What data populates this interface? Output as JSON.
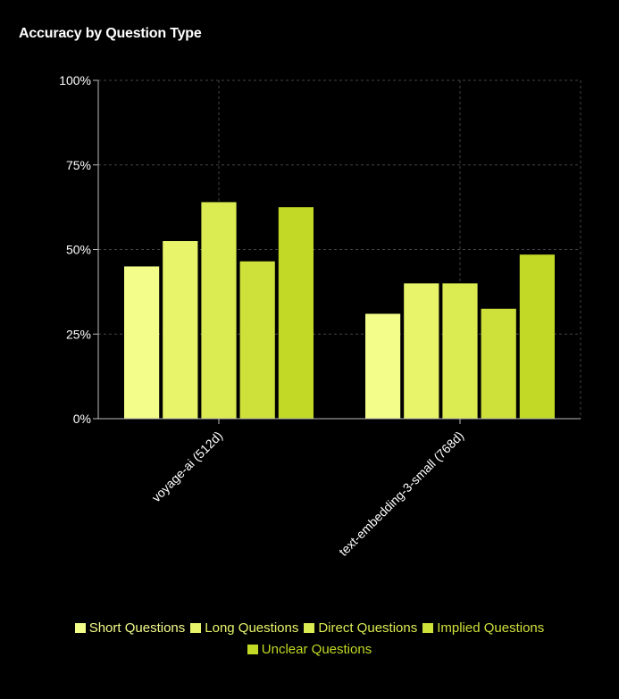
{
  "title": "Accuracy by Question Type",
  "chart_data": {
    "type": "bar",
    "title": "Accuracy by Question Type",
    "xlabel": "",
    "ylabel": "",
    "categories": [
      "voyage-ai (512d)",
      "text-embedding-3-small (768d)"
    ],
    "series": [
      {
        "name": "Short Questions",
        "values": [
          45,
          31
        ],
        "color": "#f3fd8a"
      },
      {
        "name": "Long Questions",
        "values": [
          52.5,
          40
        ],
        "color": "#e8f56a"
      },
      {
        "name": "Direct Questions",
        "values": [
          64,
          40
        ],
        "color": "#dbeb52"
      },
      {
        "name": "Implied Questions",
        "values": [
          46.5,
          32.5
        ],
        "color": "#cee03a"
      },
      {
        "name": "Unclear Questions",
        "values": [
          62.5,
          48.5
        ],
        "color": "#c2d925"
      }
    ],
    "ylim": [
      0,
      100
    ],
    "y_ticks": [
      "0%",
      "25%",
      "50%",
      "75%",
      "100%"
    ],
    "grid": true,
    "legend_position": "bottom"
  }
}
